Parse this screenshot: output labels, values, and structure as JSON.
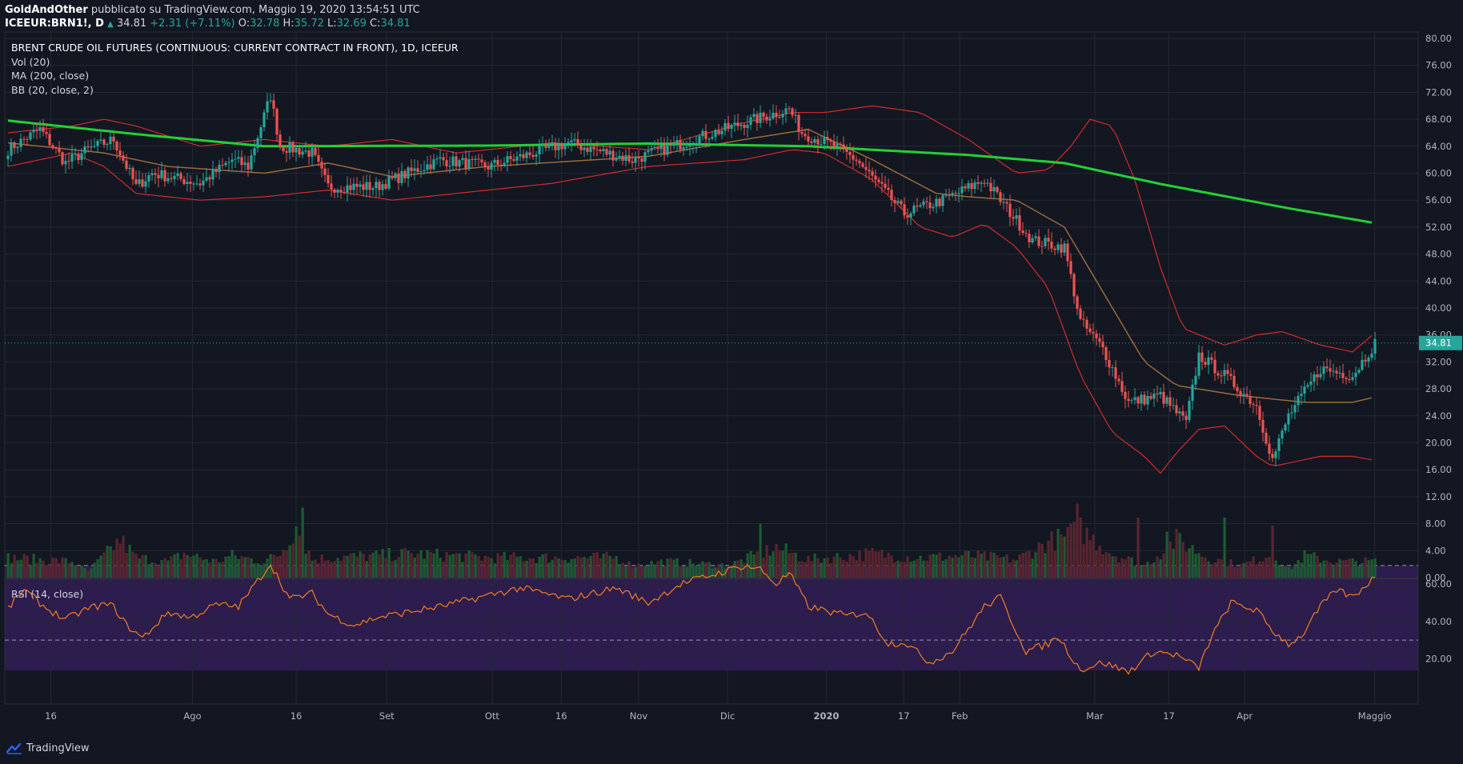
{
  "header": {
    "author": "GoldAndOther",
    "published": "pubblicato su TradingView.com, Maggio 19, 2020 13:54:51 UTC",
    "symbol": "ICEEUR:BRN1!, D",
    "last": "34.81",
    "change": "+2.31 (+7.11%)",
    "open_label": "O:",
    "open": "32.78",
    "high_label": "H:",
    "high": "35.72",
    "low_label": "L:",
    "low": "32.69",
    "close_label": "C:",
    "close": "34.81"
  },
  "legend": {
    "title": "BRENT CRUDE OIL FUTURES (CONTINUOUS: CURRENT CONTRACT IN FRONT), 1D, ICEEUR",
    "vol": "Vol (20)",
    "ma": "MA (200, close)",
    "bb": "BB (20, close, 2)",
    "rsi": "RSI (14, close)"
  },
  "brand": "TradingView",
  "colors": {
    "background": "#131722",
    "up": "#26a69a",
    "down": "#ef5350",
    "ma200": "#21d134",
    "bb_basis": "#9b6a3a",
    "bb_bands": "#d32b2b",
    "rsi_line": "#f57c1f",
    "rsi_band": "#2d1d4e",
    "last_price": "#26a69a"
  },
  "chart_data": {
    "type": "candlestick",
    "price_axis": {
      "range": [
        0,
        80
      ],
      "ticks": [
        "80.00",
        "76.00",
        "72.00",
        "68.00",
        "64.00",
        "60.00",
        "56.00",
        "52.00",
        "48.00",
        "44.00",
        "40.00",
        "36.00",
        "32.00",
        "28.00",
        "24.00",
        "20.00",
        "16.00",
        "12.00",
        "8.00",
        "4.00",
        "0.00"
      ]
    },
    "rsi_axis": {
      "range": [
        0,
        80
      ],
      "ticks": [
        "60.00",
        "40.00",
        "20.00"
      ],
      "bands": [
        30,
        70
      ]
    },
    "time_labels": [
      "16",
      "Ago",
      "16",
      "Set",
      "Ott",
      "16",
      "Nov",
      "Dic",
      "2020",
      "17",
      "Feb",
      "Mar",
      "17",
      "Apr",
      "Maggio"
    ],
    "last_price_label": "34.81",
    "price_keyframes": [
      [
        0,
        63.5
      ],
      [
        10,
        66.5
      ],
      [
        18,
        61.5
      ],
      [
        25,
        63.5
      ],
      [
        33,
        65
      ],
      [
        40,
        58
      ],
      [
        45,
        60
      ],
      [
        60,
        58.5
      ],
      [
        70,
        62
      ],
      [
        75,
        61
      ],
      [
        82,
        71.5
      ],
      [
        85,
        64
      ],
      [
        95,
        63
      ],
      [
        100,
        58
      ],
      [
        115,
        58
      ],
      [
        135,
        62
      ],
      [
        150,
        61
      ],
      [
        175,
        64.5
      ],
      [
        195,
        62
      ],
      [
        230,
        67.5
      ],
      [
        244,
        69.5
      ],
      [
        248,
        66
      ],
      [
        258,
        64
      ],
      [
        265,
        62
      ],
      [
        280,
        54
      ],
      [
        292,
        56
      ],
      [
        305,
        59
      ],
      [
        320,
        50
      ],
      [
        330,
        49
      ],
      [
        335,
        38
      ],
      [
        342,
        34
      ],
      [
        350,
        26
      ],
      [
        360,
        27
      ],
      [
        368,
        23
      ],
      [
        372,
        33
      ],
      [
        380,
        30
      ],
      [
        390,
        25.5
      ],
      [
        395,
        17.5
      ],
      [
        400,
        24
      ],
      [
        410,
        31
      ],
      [
        420,
        30
      ],
      [
        427,
        34.8
      ]
    ],
    "ma200_keyframes": [
      [
        0,
        67.8
      ],
      [
        40,
        65.8
      ],
      [
        80,
        64.0
      ],
      [
        150,
        64.1
      ],
      [
        200,
        64.4
      ],
      [
        250,
        64.0
      ],
      [
        300,
        62.7
      ],
      [
        330,
        61.5
      ],
      [
        360,
        58.4
      ],
      [
        400,
        54.8
      ],
      [
        427,
        52.6
      ]
    ],
    "bb_basis_keyframes": [
      [
        0,
        64.5
      ],
      [
        30,
        63
      ],
      [
        50,
        61
      ],
      [
        80,
        60
      ],
      [
        100,
        61.5
      ],
      [
        120,
        59.5
      ],
      [
        150,
        61
      ],
      [
        200,
        62.5
      ],
      [
        230,
        65
      ],
      [
        250,
        66.5
      ],
      [
        270,
        62
      ],
      [
        290,
        57
      ],
      [
        300,
        56.5
      ],
      [
        315,
        56
      ],
      [
        330,
        52
      ],
      [
        345,
        40
      ],
      [
        355,
        32
      ],
      [
        365,
        28.5
      ],
      [
        385,
        27
      ],
      [
        395,
        26.5
      ],
      [
        405,
        26
      ],
      [
        420,
        26
      ],
      [
        427,
        26.8
      ]
    ],
    "bb_upper_keyframes": [
      [
        0,
        66
      ],
      [
        20,
        67
      ],
      [
        30,
        68
      ],
      [
        40,
        67
      ],
      [
        60,
        64
      ],
      [
        80,
        65
      ],
      [
        90,
        64.5
      ],
      [
        100,
        64
      ],
      [
        120,
        65
      ],
      [
        140,
        63
      ],
      [
        170,
        64.5
      ],
      [
        200,
        63.5
      ],
      [
        230,
        67.5
      ],
      [
        245,
        69
      ],
      [
        255,
        69
      ],
      [
        270,
        70
      ],
      [
        285,
        69
      ],
      [
        300,
        65
      ],
      [
        315,
        60
      ],
      [
        325,
        60.5
      ],
      [
        332,
        64
      ],
      [
        338,
        68
      ],
      [
        345,
        67
      ],
      [
        352,
        59
      ],
      [
        360,
        46
      ],
      [
        367,
        37
      ],
      [
        380,
        34.5
      ],
      [
        390,
        36
      ],
      [
        398,
        36.5
      ],
      [
        410,
        34.5
      ],
      [
        420,
        33.5
      ],
      [
        427,
        36.3
      ]
    ],
    "bb_lower_keyframes": [
      [
        0,
        61
      ],
      [
        20,
        63
      ],
      [
        30,
        61
      ],
      [
        40,
        57
      ],
      [
        60,
        56
      ],
      [
        80,
        56.5
      ],
      [
        100,
        57.5
      ],
      [
        120,
        56
      ],
      [
        140,
        57
      ],
      [
        170,
        58.5
      ],
      [
        200,
        61
      ],
      [
        230,
        62
      ],
      [
        245,
        63.5
      ],
      [
        255,
        63
      ],
      [
        270,
        59
      ],
      [
        285,
        52
      ],
      [
        295,
        50.5
      ],
      [
        305,
        52.5
      ],
      [
        315,
        49
      ],
      [
        325,
        43
      ],
      [
        335,
        30
      ],
      [
        345,
        21.5
      ],
      [
        355,
        18
      ],
      [
        360,
        15.5
      ],
      [
        365,
        18.5
      ],
      [
        372,
        22
      ],
      [
        380,
        22.5
      ],
      [
        390,
        18
      ],
      [
        395,
        16.5
      ],
      [
        410,
        18
      ],
      [
        420,
        18
      ],
      [
        427,
        17.4
      ]
    ],
    "rsi_keyframes": [
      [
        0,
        47
      ],
      [
        5,
        57
      ],
      [
        12,
        47
      ],
      [
        18,
        41
      ],
      [
        25,
        47
      ],
      [
        30,
        49
      ],
      [
        33,
        48
      ],
      [
        37,
        38
      ],
      [
        42,
        31
      ],
      [
        50,
        45
      ],
      [
        57,
        42
      ],
      [
        65,
        49
      ],
      [
        72,
        48
      ],
      [
        82,
        71
      ],
      [
        88,
        52
      ],
      [
        95,
        55
      ],
      [
        100,
        44
      ],
      [
        108,
        38
      ],
      [
        115,
        42
      ],
      [
        125,
        45
      ],
      [
        135,
        48
      ],
      [
        150,
        54
      ],
      [
        160,
        58
      ],
      [
        175,
        52
      ],
      [
        190,
        58
      ],
      [
        200,
        50
      ],
      [
        210,
        60
      ],
      [
        220,
        65
      ],
      [
        230,
        70
      ],
      [
        235,
        68
      ],
      [
        240,
        60
      ],
      [
        244,
        66
      ],
      [
        250,
        48
      ],
      [
        262,
        43
      ],
      [
        268,
        45
      ],
      [
        275,
        28
      ],
      [
        280,
        29
      ],
      [
        288,
        18
      ],
      [
        295,
        24
      ],
      [
        305,
        48
      ],
      [
        310,
        53
      ],
      [
        318,
        24
      ],
      [
        325,
        28
      ],
      [
        328,
        32
      ],
      [
        335,
        14
      ],
      [
        342,
        18
      ],
      [
        350,
        13
      ],
      [
        358,
        24
      ],
      [
        365,
        22
      ],
      [
        372,
        15
      ],
      [
        376,
        32
      ],
      [
        382,
        50
      ],
      [
        390,
        46
      ],
      [
        395,
        35
      ],
      [
        400,
        28
      ],
      [
        404,
        32
      ],
      [
        410,
        48
      ],
      [
        415,
        57
      ],
      [
        420,
        53
      ],
      [
        427,
        64
      ]
    ],
    "volume_keyframes": [
      [
        0,
        5
      ],
      [
        20,
        4
      ],
      [
        25,
        1.5
      ],
      [
        32,
        7
      ],
      [
        35,
        9.5
      ],
      [
        40,
        5
      ],
      [
        50,
        4
      ],
      [
        55,
        6
      ],
      [
        65,
        4
      ],
      [
        70,
        5.5
      ],
      [
        80,
        4
      ],
      [
        85,
        6
      ],
      [
        90,
        13
      ],
      [
        95,
        4.5
      ],
      [
        100,
        5
      ],
      [
        115,
        5.5
      ],
      [
        125,
        6
      ],
      [
        140,
        5.5
      ],
      [
        150,
        5
      ],
      [
        170,
        5
      ],
      [
        190,
        5
      ],
      [
        195,
        3
      ],
      [
        205,
        4
      ],
      [
        225,
        3
      ],
      [
        235,
        6
      ],
      [
        240,
        7.5
      ],
      [
        250,
        4.5
      ],
      [
        270,
        6
      ],
      [
        285,
        5
      ],
      [
        300,
        5.5
      ],
      [
        315,
        4.5
      ],
      [
        325,
        9
      ],
      [
        330,
        10
      ],
      [
        335,
        12
      ],
      [
        345,
        6
      ],
      [
        355,
        3
      ],
      [
        365,
        9.5
      ],
      [
        375,
        5
      ],
      [
        385,
        3
      ],
      [
        395,
        6
      ],
      [
        400,
        2
      ],
      [
        405,
        5.5
      ],
      [
        415,
        4
      ],
      [
        427,
        4
      ]
    ],
    "volume_spikes": {
      "92": 17.5,
      "235": 13.5,
      "332": 13.5,
      "334": 18.5,
      "353": 15.0,
      "362": 11.5,
      "380": 15.0,
      "395": 13.0
    },
    "n_candles": 428
  }
}
